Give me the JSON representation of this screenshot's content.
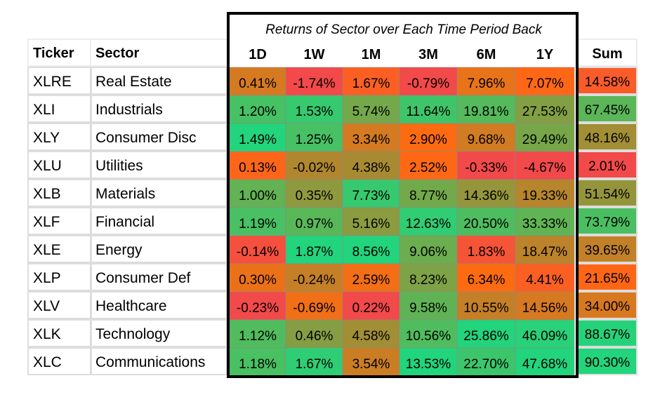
{
  "chart_data": {
    "type": "heatmap",
    "title": "Returns of Sector over Each Time Period Back",
    "headers": {
      "ticker": "Ticker",
      "sector": "Sector",
      "periods": [
        "1D",
        "1W",
        "1M",
        "3M",
        "6M",
        "1Y"
      ],
      "sum": "Sum"
    },
    "rows": [
      {
        "ticker": "XLRE",
        "sector": "Real Estate",
        "values": [
          "0.41%",
          "-1.74%",
          "1.67%",
          "-0.79%",
          "7.96%",
          "7.07%"
        ],
        "sum": "14.58%"
      },
      {
        "ticker": "XLI",
        "sector": "Industrials",
        "values": [
          "1.20%",
          "1.53%",
          "5.74%",
          "11.64%",
          "19.81%",
          "27.53%"
        ],
        "sum": "67.45%"
      },
      {
        "ticker": "XLY",
        "sector": "Consumer Disc",
        "values": [
          "1.49%",
          "1.25%",
          "3.34%",
          "2.90%",
          "9.68%",
          "29.49%"
        ],
        "sum": "48.16%"
      },
      {
        "ticker": "XLU",
        "sector": "Utilities",
        "values": [
          "0.13%",
          "-0.02%",
          "4.38%",
          "2.52%",
          "-0.33%",
          "-4.67%"
        ],
        "sum": "2.01%"
      },
      {
        "ticker": "XLB",
        "sector": "Materials",
        "values": [
          "1.00%",
          "0.35%",
          "7.73%",
          "8.77%",
          "14.36%",
          "19.33%"
        ],
        "sum": "51.54%"
      },
      {
        "ticker": "XLF",
        "sector": "Financial",
        "values": [
          "1.19%",
          "0.97%",
          "5.16%",
          "12.63%",
          "20.50%",
          "33.33%"
        ],
        "sum": "73.79%"
      },
      {
        "ticker": "XLE",
        "sector": "Energy",
        "values": [
          "-0.14%",
          "1.87%",
          "8.56%",
          "9.06%",
          "1.83%",
          "18.47%"
        ],
        "sum": "39.65%"
      },
      {
        "ticker": "XLP",
        "sector": "Consumer Def",
        "values": [
          "0.30%",
          "-0.24%",
          "2.59%",
          "8.23%",
          "6.34%",
          "4.41%"
        ],
        "sum": "21.65%"
      },
      {
        "ticker": "XLV",
        "sector": "Healthcare",
        "values": [
          "-0.23%",
          "-0.69%",
          "0.22%",
          "9.58%",
          "10.55%",
          "14.56%"
        ],
        "sum": "34.00%"
      },
      {
        "ticker": "XLK",
        "sector": "Technology",
        "values": [
          "1.12%",
          "0.46%",
          "4.58%",
          "10.56%",
          "25.86%",
          "46.09%"
        ],
        "sum": "88.67%"
      },
      {
        "ticker": "XLC",
        "sector": "Communications",
        "values": [
          "1.18%",
          "1.67%",
          "3.54%",
          "13.53%",
          "22.70%",
          "47.68%"
        ],
        "sum": "90.30%"
      }
    ],
    "colors": {
      "red": "#f2494a",
      "orange": "#ff6a10",
      "olive": "#a88a32",
      "green": "#58b858",
      "bright_green": "#22d47c",
      "border": "#000000",
      "gridline": "#dddddd",
      "header_band": "#ededed"
    },
    "color_scale": "per-column diverging: lowest red, mid orange/olive, highest green"
  }
}
